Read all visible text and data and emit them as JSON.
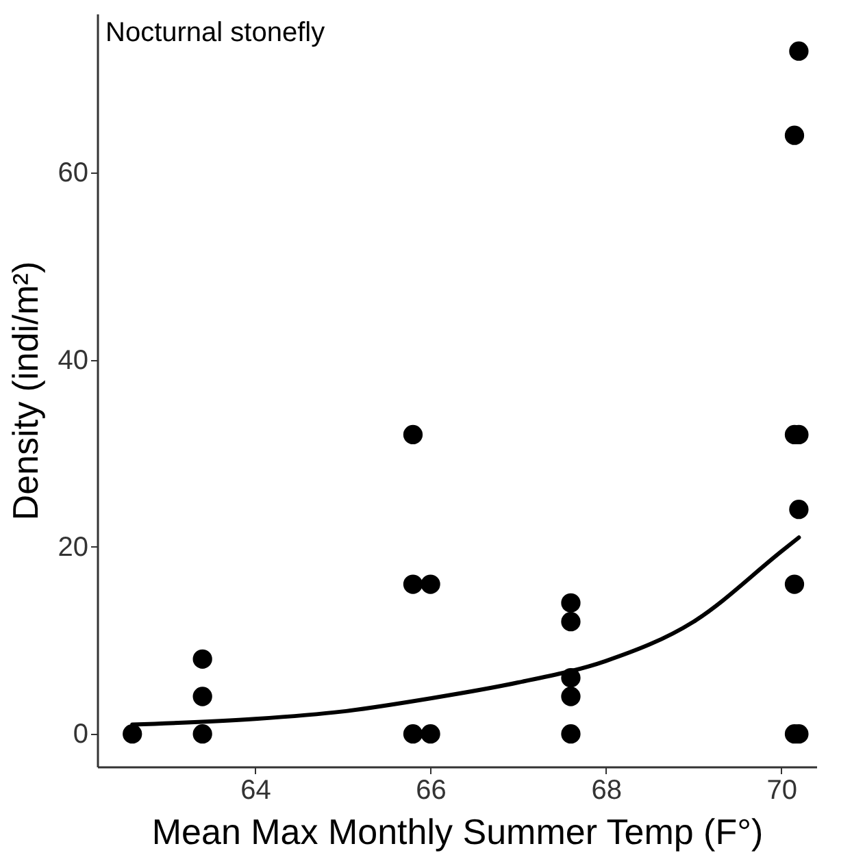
{
  "chart_data": {
    "type": "scatter",
    "title": "Nocturnal stonefly",
    "xlabel": "Mean Max Monthly Summer Temp (F°)",
    "ylabel": "Density (indi/m²)",
    "xlim": [
      62.2,
      70.4
    ],
    "ylim": [
      -3.5,
      77
    ],
    "xticks": [
      64,
      66,
      68,
      70
    ],
    "yticks": [
      0,
      20,
      40,
      60
    ],
    "grid": false,
    "series": [
      {
        "marker": "circle",
        "color": "#000000",
        "x": [
          62.6,
          63.4,
          63.4,
          63.4,
          65.8,
          65.8,
          65.8,
          66.0,
          66.0,
          67.6,
          67.6,
          67.6,
          67.6,
          67.6,
          70.15,
          70.2,
          70.15,
          70.2,
          70.2,
          70.15,
          70.15,
          70.2
        ],
        "values": [
          0,
          0,
          4,
          8,
          0,
          16,
          32,
          0,
          16,
          0,
          4,
          6,
          12,
          14,
          0,
          0,
          16,
          24,
          32,
          32,
          64,
          73
        ]
      },
      {
        "type": "line",
        "color": "#000000",
        "x": [
          62.6,
          64,
          65,
          66,
          67,
          68,
          69,
          70,
          70.2
        ],
        "values": [
          1.0,
          1.6,
          2.4,
          3.8,
          5.5,
          7.8,
          12,
          19.5,
          21
        ]
      }
    ]
  }
}
